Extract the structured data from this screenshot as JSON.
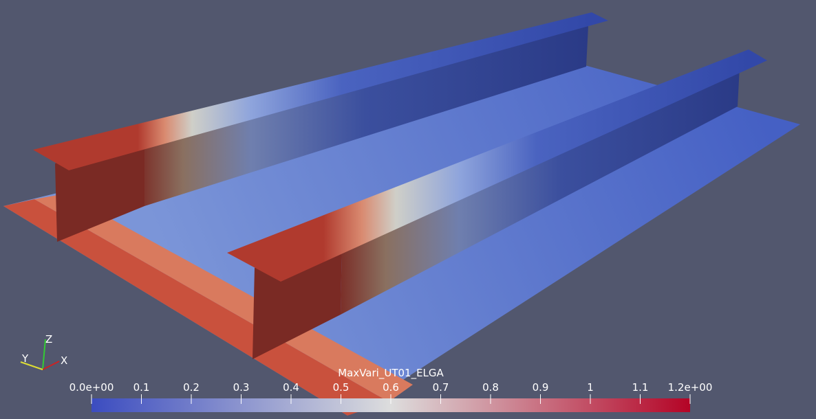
{
  "viewport": {
    "axes": {
      "x": "X",
      "y": "Y",
      "z": "Z"
    }
  },
  "chart_data": {
    "type": "colorbar",
    "title": "MaxVari_UT01_ELGA",
    "xlim": [
      0,
      1.2
    ],
    "xticks": [
      {
        "value": 0,
        "label": "0.0e+00"
      },
      0.1,
      0.2,
      0.3,
      0.4,
      0.5,
      0.6,
      0.7,
      0.8,
      0.9,
      1,
      1.1,
      {
        "value": 1.2,
        "label": "1.2e+00"
      }
    ],
    "colors": [
      "#3b4cc0",
      "#dddddd",
      "#b40426"
    ]
  }
}
